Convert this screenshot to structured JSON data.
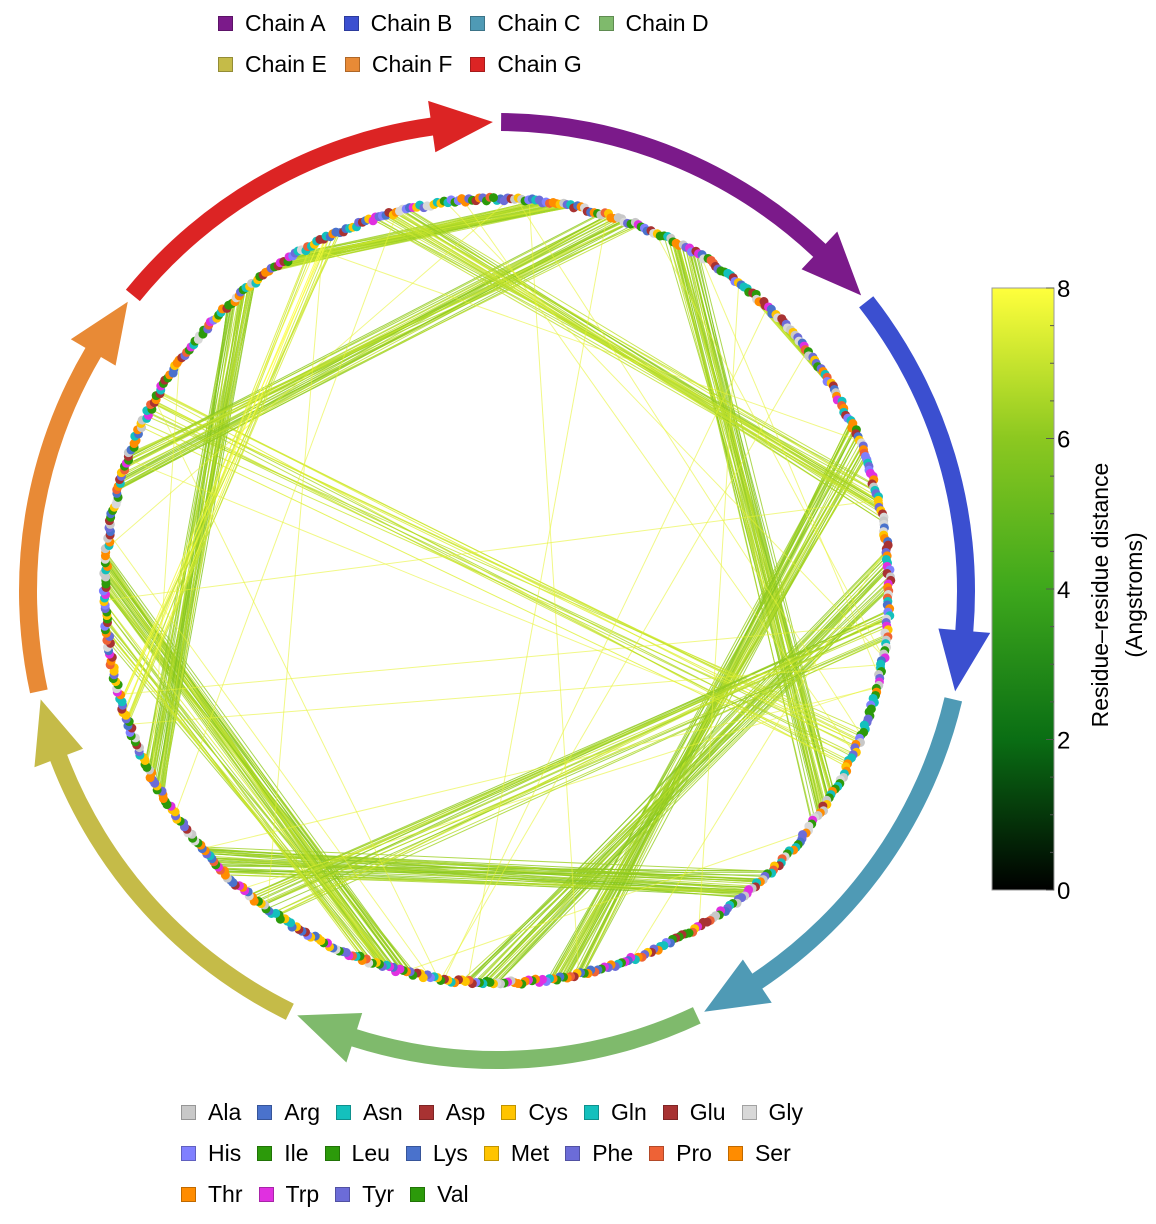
{
  "chart_data": {
    "type": "chord",
    "chains": [
      {
        "name": "Chain A",
        "color": "#7b1a8a"
      },
      {
        "name": "Chain B",
        "color": "#3b4fd0"
      },
      {
        "name": "Chain C",
        "color": "#4f9ab5"
      },
      {
        "name": "Chain D",
        "color": "#7fba6c"
      },
      {
        "name": "Chain E",
        "color": "#c5bb48"
      },
      {
        "name": "Chain F",
        "color": "#e88a36"
      },
      {
        "name": "Chain G",
        "color": "#dc2424"
      }
    ],
    "residue_types": [
      {
        "name": "Ala",
        "color": "#c8c8c8"
      },
      {
        "name": "Arg",
        "color": "#4a72cc"
      },
      {
        "name": "Asn",
        "color": "#14c0bd"
      },
      {
        "name": "Asp",
        "color": "#a83232"
      },
      {
        "name": "Cys",
        "color": "#ffc400"
      },
      {
        "name": "Gln",
        "color": "#14c0bd"
      },
      {
        "name": "Glu",
        "color": "#a83232"
      },
      {
        "name": "Gly",
        "color": "#d8d8d8"
      },
      {
        "name": "His",
        "color": "#8080ff"
      },
      {
        "name": "Ile",
        "color": "#2c9a0a"
      },
      {
        "name": "Leu",
        "color": "#2c9a0a"
      },
      {
        "name": "Lys",
        "color": "#4a72cc"
      },
      {
        "name": "Met",
        "color": "#ffc400"
      },
      {
        "name": "Phe",
        "color": "#6c6cd8"
      },
      {
        "name": "Pro",
        "color": "#ee6236"
      },
      {
        "name": "Ser",
        "color": "#ff8c00"
      },
      {
        "name": "Thr",
        "color": "#ff8c00"
      },
      {
        "name": "Trp",
        "color": "#e030e0"
      },
      {
        "name": "Tyr",
        "color": "#6c6cd8"
      },
      {
        "name": "Val",
        "color": "#2c9a0a"
      }
    ],
    "contact_bundles": [
      {
        "from_chain": "A",
        "from_pos": 0.15,
        "to_chain": "G",
        "to_pos": 0.35,
        "count": 40,
        "distance": 6.6
      },
      {
        "from_chain": "A",
        "from_pos": 0.55,
        "to_chain": "C",
        "to_pos": 0.4,
        "count": 35,
        "distance": 6.3
      },
      {
        "from_chain": "A",
        "from_pos": 0.8,
        "to_chain": "B",
        "to_pos": 0.1,
        "count": 20,
        "distance": 6.8
      },
      {
        "from_chain": "B",
        "from_pos": 0.3,
        "to_chain": "D",
        "to_pos": 0.3,
        "count": 35,
        "distance": 6.4
      },
      {
        "from_chain": "B",
        "from_pos": 0.7,
        "to_chain": "D",
        "to_pos": 0.55,
        "count": 25,
        "distance": 6.2
      },
      {
        "from_chain": "C",
        "from_pos": 0.7,
        "to_chain": "E",
        "to_pos": 0.4,
        "count": 35,
        "distance": 6.3
      },
      {
        "from_chain": "C",
        "from_pos": 0.2,
        "to_chain": "F",
        "to_pos": 0.8,
        "count": 15,
        "distance": 6.9
      },
      {
        "from_chain": "D",
        "from_pos": 0.8,
        "to_chain": "F",
        "to_pos": 0.3,
        "count": 35,
        "distance": 6.4
      },
      {
        "from_chain": "E",
        "from_pos": 0.7,
        "to_chain": "G",
        "to_pos": 0.2,
        "count": 35,
        "distance": 6.3
      },
      {
        "from_chain": "F",
        "from_pos": 0.6,
        "to_chain": "A",
        "to_pos": 0.35,
        "count": 30,
        "distance": 6.5
      },
      {
        "from_chain": "G",
        "from_pos": 0.7,
        "to_chain": "B",
        "to_pos": 0.5,
        "count": 25,
        "distance": 6.7
      },
      {
        "from_chain": "E",
        "from_pos": 0.2,
        "to_chain": "B",
        "to_pos": 0.85,
        "count": 20,
        "distance": 6.6
      },
      {
        "from_chain": "F",
        "from_pos": 0.15,
        "to_chain": "D",
        "to_pos": 0.85,
        "count": 15,
        "distance": 6.8
      },
      {
        "from_chain": "G",
        "from_pos": 0.5,
        "to_chain": "E",
        "to_pos": 0.9,
        "count": 12,
        "distance": 7.4
      }
    ],
    "colorbar": {
      "label_line1": "Residue–residue distance",
      "label_line2": "(Angstroms)",
      "range": [
        0,
        8
      ],
      "ticks": [
        "0",
        "2",
        "4",
        "6",
        "8"
      ],
      "colors": [
        "#000000",
        "#0a6e14",
        "#3ea81c",
        "#8cc820",
        "#ffff3c"
      ]
    }
  }
}
